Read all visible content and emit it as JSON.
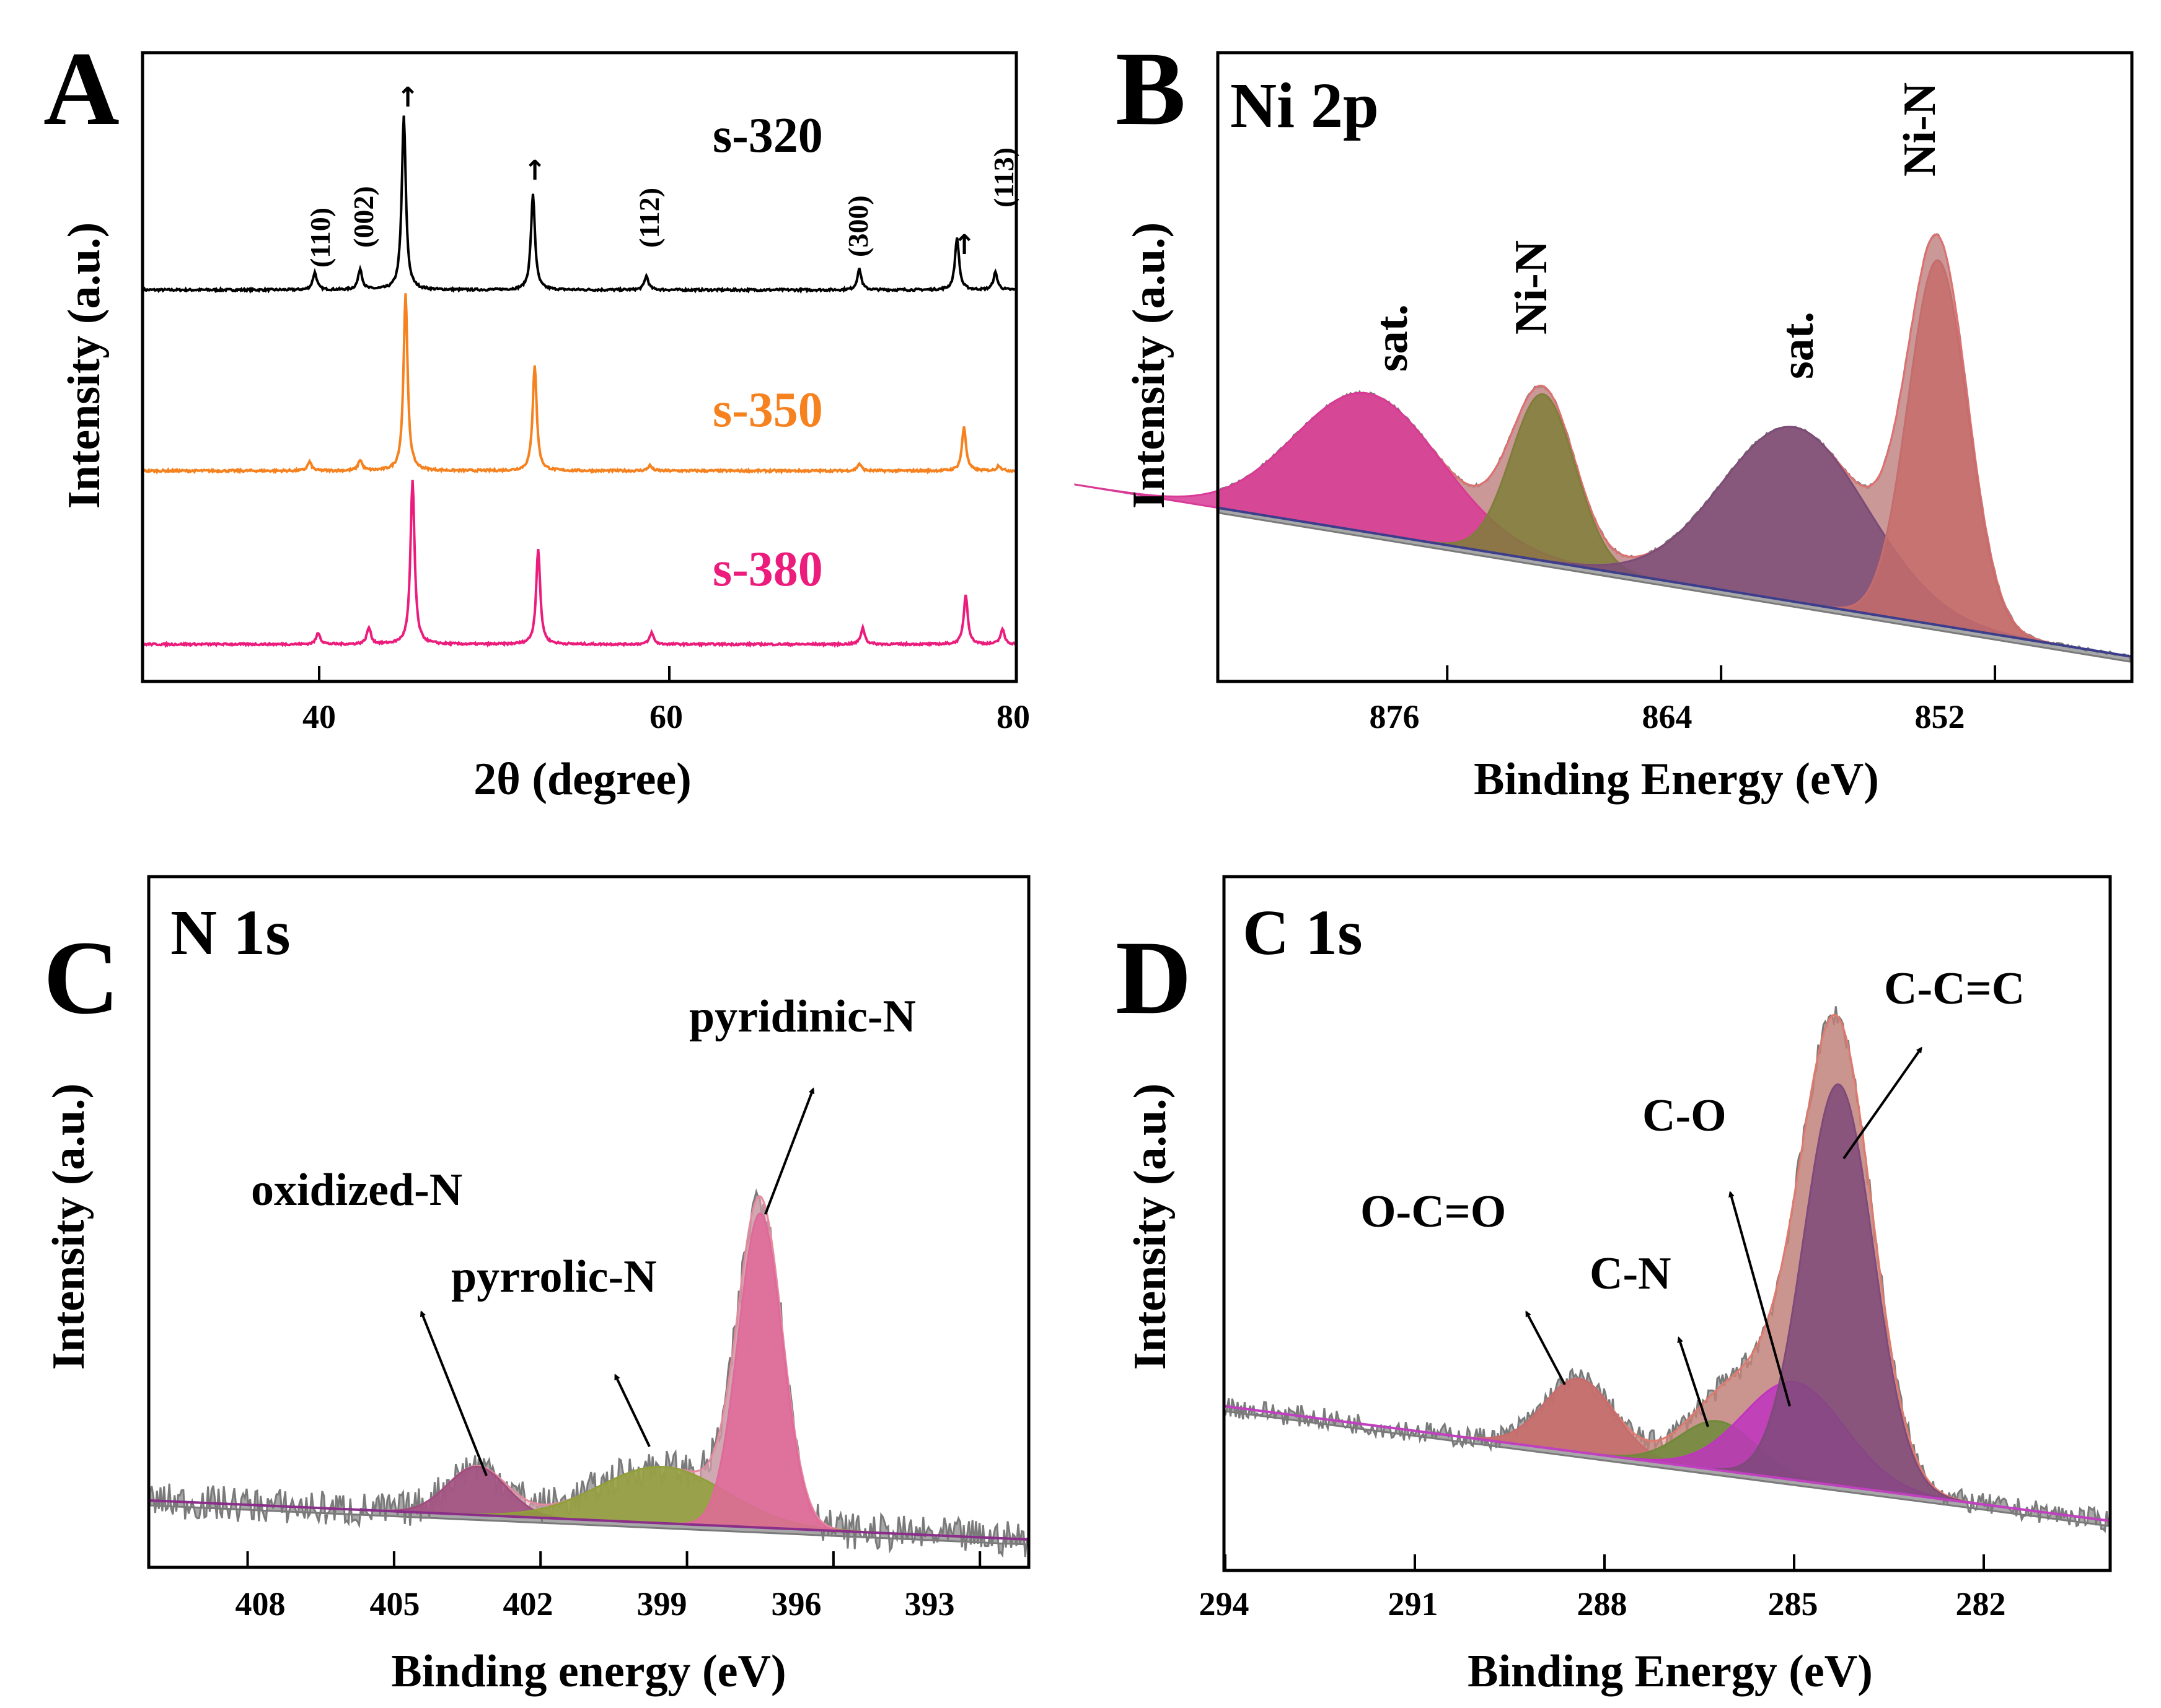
{
  "chart_data": [
    {
      "panel": "A",
      "type": "line",
      "xlabel": "2θ (degree)",
      "ylabel": "Intensity (a.u.)",
      "xlim": [
        30,
        80
      ],
      "xticks": [
        40,
        60,
        80
      ],
      "series": [
        {
          "name": "s-320",
          "color": "#000000",
          "peaks": [
            {
              "x": 39.8,
              "h": 0.1
            },
            {
              "x": 42.4,
              "h": 0.12
            },
            {
              "x": 44.9,
              "h": 1.0
            },
            {
              "x": 52.3,
              "h": 0.55
            },
            {
              "x": 58.8,
              "h": 0.08
            },
            {
              "x": 71.0,
              "h": 0.12
            },
            {
              "x": 76.6,
              "h": 0.3
            },
            {
              "x": 78.8,
              "h": 0.1
            }
          ]
        },
        {
          "name": "s-350",
          "color": "#F5821F",
          "peaks": [
            {
              "x": 39.5,
              "h": 0.05
            },
            {
              "x": 42.4,
              "h": 0.06
            },
            {
              "x": 45.0,
              "h": 1.0
            },
            {
              "x": 52.4,
              "h": 0.6
            },
            {
              "x": 59.0,
              "h": 0.03
            },
            {
              "x": 71.0,
              "h": 0.04
            },
            {
              "x": 77.0,
              "h": 0.25
            },
            {
              "x": 79.0,
              "h": 0.03
            }
          ]
        },
        {
          "name": "s-380",
          "color": "#EC1C7C",
          "peaks": [
            {
              "x": 40.0,
              "h": 0.07
            },
            {
              "x": 42.9,
              "h": 0.1
            },
            {
              "x": 45.4,
              "h": 1.0
            },
            {
              "x": 52.6,
              "h": 0.58
            },
            {
              "x": 59.1,
              "h": 0.07
            },
            {
              "x": 71.2,
              "h": 0.1
            },
            {
              "x": 77.1,
              "h": 0.3
            },
            {
              "x": 79.2,
              "h": 0.09
            }
          ]
        }
      ],
      "reflections": [
        "(110)",
        "(002)",
        "(112)",
        "(300)",
        "(113)"
      ]
    },
    {
      "panel": "B",
      "type": "area",
      "title": "Ni 2p",
      "xlabel": "Binding Energy (eV)",
      "ylabel": "Intensity (a.u.)",
      "xlim": [
        886,
        846
      ],
      "xticks": [
        876,
        864,
        852
      ],
      "components": [
        {
          "label": "sat.",
          "center": 879.5,
          "height": 0.35,
          "width": 3.2,
          "color": "#D83A96"
        },
        {
          "label": "Ni-N",
          "center": 871.8,
          "height": 0.42,
          "width": 1.4,
          "color": "#7F7E3A"
        },
        {
          "label": "sat.",
          "center": 860.8,
          "height": 0.44,
          "width": 3.2,
          "color": "#7B4C78"
        },
        {
          "label": "Ni-N",
          "center": 854.5,
          "height": 0.92,
          "width": 1.3,
          "color": "#C56C6C"
        }
      ]
    },
    {
      "panel": "C",
      "type": "area",
      "title": "N 1s",
      "xlabel": "Binding energy (eV)",
      "ylabel": "Intensity (a.u.)",
      "xlim": [
        410,
        392
      ],
      "xticks": [
        408,
        405,
        402,
        399,
        396,
        393
      ],
      "components": [
        {
          "label": "oxidized-N",
          "center": 403.3,
          "height": 0.12,
          "width": 0.6,
          "color": "#9E4D7F"
        },
        {
          "label": "pyrrolic-N",
          "center": 399.5,
          "height": 0.14,
          "width": 1.3,
          "color": "#8FA03A"
        },
        {
          "label": "pyridinic-N",
          "center": 397.5,
          "height": 0.78,
          "width": 0.45,
          "color": "#E0689A"
        }
      ]
    },
    {
      "panel": "D",
      "type": "area",
      "title": "C 1s",
      "xlabel": "Binding Energy (eV)",
      "ylabel": "Intensity (a.u.)",
      "xlim": [
        294,
        280
      ],
      "xticks": [
        294,
        291,
        288,
        285,
        282
      ],
      "components": [
        {
          "label": "O-C=O",
          "center": 288.4,
          "height": 0.15,
          "width": 0.55,
          "color": "#C56C6C"
        },
        {
          "label": "C-N",
          "center": 286.2,
          "height": 0.1,
          "width": 0.6,
          "color": "#6F8A3A"
        },
        {
          "label": "C-O",
          "center": 285.0,
          "height": 0.2,
          "width": 0.8,
          "color": "#C034C0"
        },
        {
          "label": "C-C=C",
          "center": 284.3,
          "height": 0.82,
          "width": 0.55,
          "color": "#7E4A7A"
        }
      ]
    }
  ],
  "labels": {
    "panel_a": "A",
    "panel_b": "B",
    "panel_c": "C",
    "panel_d": "D",
    "a_s320": "s-320",
    "a_s350": "s-350",
    "a_s380": "s-380",
    "a_h110": "(110)",
    "a_h002": "(002)",
    "a_h112": "(112)",
    "a_h300": "(300)",
    "a_h113": "(113)",
    "a_xlabel": "2θ (degree)",
    "a_ylabel": "Intensity (a.u.)",
    "a_t40": "40",
    "a_t60": "60",
    "a_t80": "80",
    "b_title": "Ni 2p",
    "b_sat1": "sat.",
    "b_nin1": "Ni-N",
    "b_sat2": "sat.",
    "b_nin2": "Ni-N",
    "b_xlabel": "Binding Energy (eV)",
    "b_ylabel": "Intensity (a.u.)",
    "b_t876": "876",
    "b_t864": "864",
    "b_t852": "852",
    "c_title": "N 1s",
    "c_pyridinic": "pyridinic-N",
    "c_oxidized": "oxidized-N",
    "c_pyrrolic": "pyrrolic-N",
    "c_xlabel": "Binding energy (eV)",
    "c_ylabel": "Intensity (a.u.)",
    "c_t408": "408",
    "c_t405": "405",
    "c_t402": "402",
    "c_t399": "399",
    "c_t396": "396",
    "c_t393": "393",
    "d_title": "C 1s",
    "d_ccc": "C-C=C",
    "d_co": "C-O",
    "d_oco": "O-C=O",
    "d_cn": "C-N",
    "d_xlabel": "Binding Energy (eV)",
    "d_ylabel": "Intensity (a.u.)",
    "d_t294": "294",
    "d_t291": "291",
    "d_t288": "288",
    "d_t285": "285",
    "d_t282": "282"
  }
}
